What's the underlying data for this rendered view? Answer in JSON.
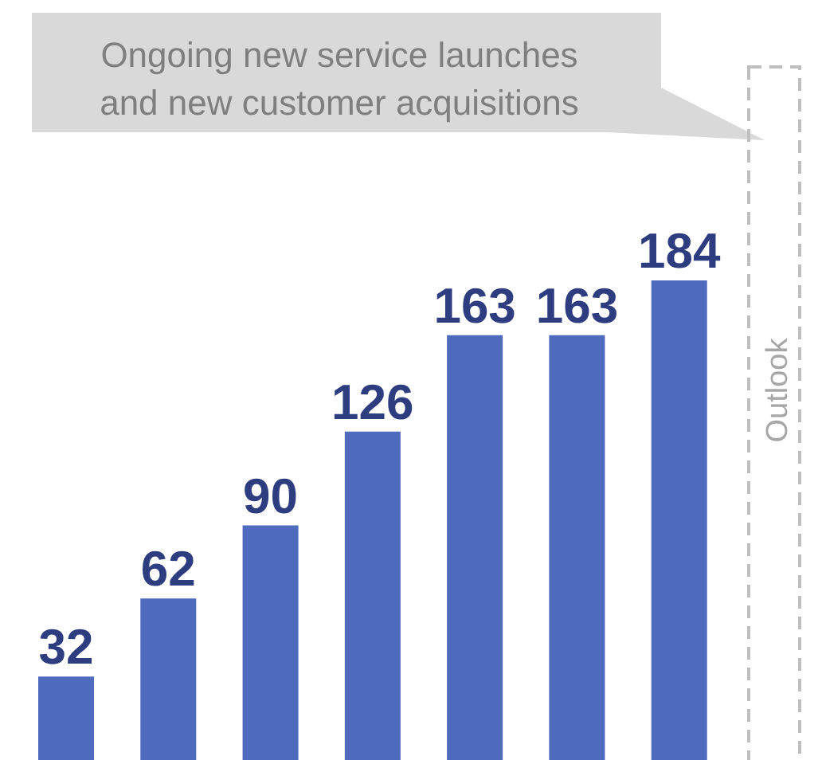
{
  "chart_data": {
    "type": "bar",
    "categories": [
      null,
      null,
      null,
      null,
      null,
      null,
      null
    ],
    "values": [
      32,
      62,
      90,
      126,
      163,
      163,
      184
    ],
    "color": "#4e6bbd",
    "data_labels": true,
    "annotations": [
      "Ongoing new service launches\nand new customer acquisitions",
      "Outlook"
    ]
  }
}
